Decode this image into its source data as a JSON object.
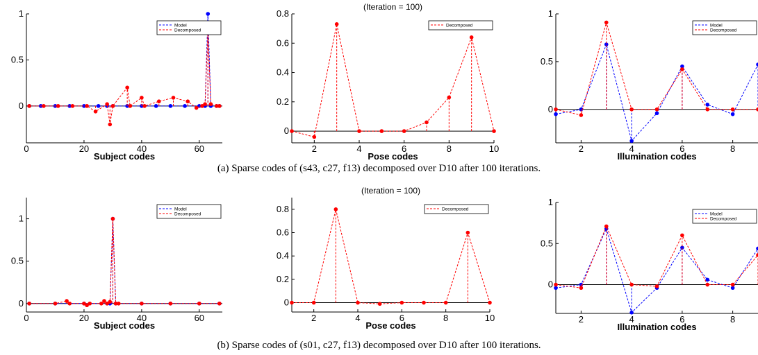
{
  "captions": {
    "a": "(a) Sparse codes of (s43, c27, f13) decomposed over D10 after 100 iterations.",
    "b": "(b) Sparse codes of (s01, c27, f13) decomposed over D10 after 100 iterations."
  },
  "colors": {
    "model": "#0000ff",
    "decomposed": "#ff0000",
    "axis": "#000000"
  },
  "chart_data": [
    {
      "type": "line",
      "panel": "a-subject",
      "xlabel": "Subject codes",
      "title": "",
      "xlim": [
        0,
        68
      ],
      "ylim": [
        -0.4,
        1.0
      ],
      "xticks": [
        0,
        20,
        40,
        60
      ],
      "yticks": [
        0,
        0.5,
        1
      ],
      "legend": [
        "Model",
        "Decomposed"
      ],
      "series": [
        {
          "name": "Model",
          "x": [
            1,
            5,
            10,
            15,
            20,
            25,
            28,
            30,
            35,
            40,
            45,
            50,
            55,
            60,
            62,
            63,
            64,
            66,
            67
          ],
          "values": [
            0,
            0,
            0,
            0,
            0,
            0,
            0,
            0,
            0,
            0,
            0,
            0,
            0,
            0,
            0,
            1.0,
            0,
            0,
            0
          ]
        },
        {
          "name": "Decomposed",
          "x": [
            1,
            6,
            11,
            16,
            21,
            24,
            28,
            29,
            30,
            35,
            36,
            40,
            41,
            46,
            51,
            56,
            59,
            61,
            62,
            63,
            64,
            66,
            67
          ],
          "values": [
            0,
            0,
            0,
            0,
            0,
            -0.06,
            0.02,
            -0.2,
            0,
            0.2,
            0,
            0.09,
            0,
            0.05,
            0.09,
            0.05,
            -0.02,
            0,
            0.02,
            0.82,
            0.02,
            0,
            0
          ]
        }
      ]
    },
    {
      "type": "line",
      "panel": "a-pose",
      "xlabel": "Pose codes",
      "title": "(Iteration = 100)",
      "xlim": [
        1,
        10
      ],
      "ylim": [
        -0.08,
        0.8
      ],
      "xticks": [
        2,
        4,
        6,
        8,
        10
      ],
      "yticks": [
        0,
        0.2,
        0.4,
        0.6,
        0.8
      ],
      "legend": [
        "Decomposed"
      ],
      "series": [
        {
          "name": "Decomposed",
          "x": [
            1,
            2,
            3,
            4,
            5,
            6,
            7,
            8,
            9,
            10
          ],
          "values": [
            0,
            -0.04,
            0.73,
            0,
            0,
            0,
            0.06,
            0.23,
            0.64,
            0
          ]
        }
      ]
    },
    {
      "type": "line",
      "panel": "a-illumination",
      "xlabel": "Illumination codes",
      "title": "",
      "xlim": [
        1,
        9
      ],
      "ylim": [
        -0.35,
        1.0
      ],
      "xticks": [
        2,
        4,
        6,
        8
      ],
      "yticks": [
        0,
        0.5,
        1
      ],
      "legend": [
        "Model",
        "Decomposed"
      ],
      "series": [
        {
          "name": "Model",
          "x": [
            1,
            2,
            3,
            4,
            5,
            6,
            7,
            8,
            9
          ],
          "values": [
            -0.05,
            0,
            0.68,
            -0.33,
            -0.04,
            0.45,
            0.05,
            -0.05,
            0.47
          ]
        },
        {
          "name": "Decomposed",
          "x": [
            1,
            2,
            3,
            4,
            5,
            6,
            7,
            8,
            9
          ],
          "values": [
            0,
            -0.06,
            0.91,
            0,
            0,
            0.42,
            0,
            0,
            0
          ]
        }
      ]
    },
    {
      "type": "line",
      "panel": "b-subject",
      "xlabel": "Subject codes",
      "title": "",
      "xlim": [
        0,
        68
      ],
      "ylim": [
        -0.1,
        1.25
      ],
      "xticks": [
        0,
        20,
        40,
        60
      ],
      "yticks": [
        0,
        0.5,
        1
      ],
      "legend": [
        "Model",
        "Decomposed"
      ],
      "series": [
        {
          "name": "Model",
          "x": [
            1,
            10,
            20,
            28,
            29,
            30,
            31,
            40,
            50,
            60,
            67
          ],
          "values": [
            0,
            0,
            0,
            0,
            0,
            1.0,
            0,
            0,
            0,
            0,
            0
          ]
        },
        {
          "name": "Decomposed",
          "x": [
            1,
            10,
            14,
            15,
            20,
            21,
            22,
            26,
            27,
            28,
            29,
            30,
            31,
            32,
            40,
            50,
            60,
            67
          ],
          "values": [
            0,
            0,
            0.03,
            0,
            0,
            -0.02,
            0,
            0,
            0.03,
            0,
            0.02,
            1.0,
            0,
            0,
            0,
            0,
            0,
            0
          ]
        }
      ]
    },
    {
      "type": "line",
      "panel": "b-pose",
      "xlabel": "Pose codes",
      "title": "(Iteration = 100)",
      "xlim": [
        1,
        10
      ],
      "ylim": [
        -0.08,
        0.9
      ],
      "xticks": [
        2,
        4,
        6,
        8,
        10
      ],
      "yticks": [
        0,
        0.2,
        0.4,
        0.6,
        0.8
      ],
      "legend": [
        "Decomposed"
      ],
      "series": [
        {
          "name": "Decomposed",
          "x": [
            1,
            2,
            3,
            4,
            5,
            6,
            7,
            8,
            9,
            10
          ],
          "values": [
            0,
            0,
            0.8,
            0,
            -0.01,
            0,
            0,
            0,
            0.6,
            0
          ]
        }
      ]
    },
    {
      "type": "line",
      "panel": "b-illumination",
      "xlabel": "Illumination codes",
      "title": "",
      "xlim": [
        1,
        9
      ],
      "ylim": [
        -0.35,
        1.0
      ],
      "xticks": [
        2,
        4,
        6,
        8
      ],
      "yticks": [
        0,
        0.5,
        1
      ],
      "legend": [
        "Model",
        "Decomposed"
      ],
      "series": [
        {
          "name": "Model",
          "x": [
            1,
            2,
            3,
            4,
            5,
            6,
            7,
            8,
            9
          ],
          "values": [
            -0.04,
            0,
            0.68,
            -0.34,
            -0.04,
            0.45,
            0.06,
            -0.04,
            0.44
          ]
        },
        {
          "name": "Decomposed",
          "x": [
            1,
            2,
            3,
            4,
            5,
            6,
            7,
            8,
            9
          ],
          "values": [
            0,
            -0.04,
            0.71,
            0,
            -0.02,
            0.6,
            0,
            0,
            0.36
          ]
        }
      ]
    }
  ]
}
